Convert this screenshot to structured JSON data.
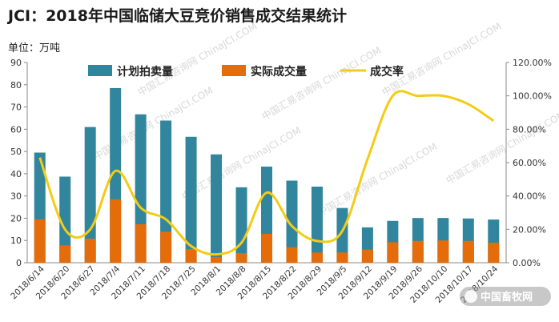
{
  "title": "JCI：2018年中国临储大豆竞价销售成交结果统计",
  "unit_label": "单位：万吨",
  "watermark": "中国汇易咨询网 ChinaJCI.COM",
  "credit": "中国畜牧网",
  "colors": {
    "planned": "#31859c",
    "actual": "#e46c0a",
    "rate": "#f2cc16"
  },
  "chart_data": {
    "type": "bar",
    "categories": [
      "2018/6/14",
      "2018/6/20",
      "2018/6/27",
      "2018/7/4",
      "2018/7/11",
      "2018/7/18",
      "2018/7/25",
      "2018/8/1",
      "2018/8/8",
      "2018/8/15",
      "2018/8/22",
      "2018/8/29",
      "2018/9/5",
      "2018/9/12",
      "2018/9/19",
      "2018/9/26",
      "2018/10/10",
      "2018/10/17",
      "2018/10/24"
    ],
    "series": [
      {
        "name": "计划拍卖量",
        "kind": "bar",
        "axis": "left",
        "values": [
          49.5,
          38.7,
          61.0,
          78.5,
          66.7,
          63.9,
          56.6,
          48.7,
          33.9,
          43.2,
          36.9,
          34.2,
          24.6,
          15.9,
          18.8,
          20.1,
          20.1,
          19.9,
          19.4
        ]
      },
      {
        "name": "实际成交量",
        "kind": "bar",
        "axis": "left",
        "values": [
          19.5,
          7.8,
          10.8,
          28.5,
          17.3,
          14.0,
          6.1,
          2.6,
          4.3,
          13.0,
          7.0,
          4.6,
          4.6,
          5.9,
          9.2,
          9.8,
          10.0,
          9.8,
          9.0
        ]
      },
      {
        "name": "成交率",
        "kind": "line",
        "axis": "right",
        "values": [
          63,
          20,
          20,
          55,
          33,
          26,
          10,
          5,
          12,
          42,
          22,
          13,
          19,
          62,
          100,
          100,
          100,
          95,
          85
        ]
      }
    ],
    "y_left": {
      "min": 0,
      "max": 90,
      "step": 10,
      "ticks": [
        "0",
        "10",
        "20",
        "30",
        "40",
        "50",
        "60",
        "70",
        "80",
        "90"
      ]
    },
    "y_right": {
      "min": 0,
      "max": 120,
      "step": 20,
      "ticks": [
        "0.00%",
        "20.00%",
        "40.00%",
        "60.00%",
        "80.00%",
        "100.00%",
        "120.00%"
      ]
    },
    "legend_position": "top",
    "grid": false
  }
}
